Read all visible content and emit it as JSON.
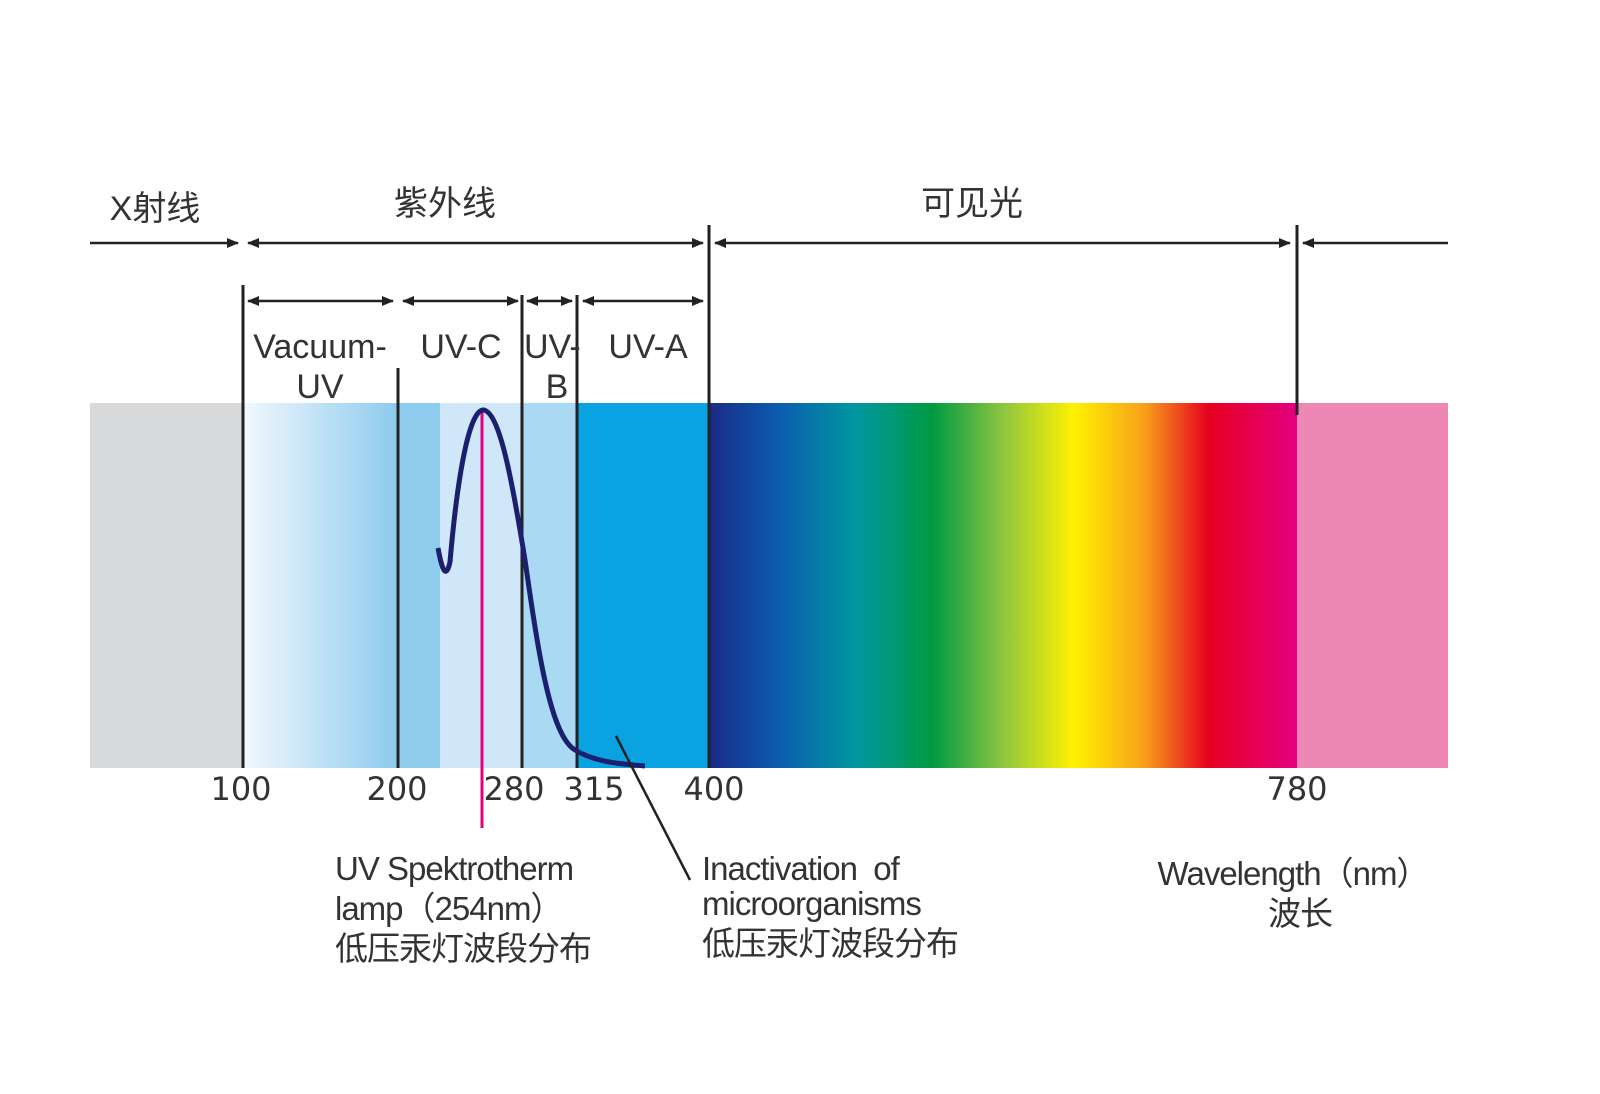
{
  "regions": [
    "X射线",
    "紫外线",
    "可见光"
  ],
  "sub_bands": [
    {
      "lines": [
        "Vacuum-",
        "UV"
      ]
    },
    {
      "lines": [
        "UV-C"
      ]
    },
    {
      "lines": [
        "UV-",
        "B"
      ]
    },
    {
      "lines": [
        "UV-A"
      ]
    }
  ],
  "scale": {
    "ticks": [
      100,
      200,
      280,
      315,
      400,
      780
    ]
  },
  "annotations": [
    {
      "lines": [
        "UV Spektrotherm",
        "lamp（254nm）",
        "低压汞灯波段分布"
      ]
    },
    {
      "lines": [
        "Inactivation  of",
        "microorganisms",
        "低压汞灯波段分布"
      ]
    },
    {
      "lines": [
        "Wavelength（nm）",
        "波长"
      ]
    }
  ]
}
